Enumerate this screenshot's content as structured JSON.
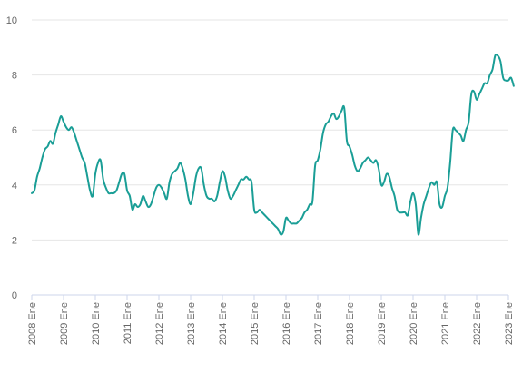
{
  "chart_data": {
    "type": "line",
    "title": "",
    "xlabel": "",
    "ylabel": "",
    "ylim": [
      0,
      10
    ],
    "yticks": [
      "0",
      "2",
      "4",
      "6",
      "8",
      "10"
    ],
    "xticks": [
      "2008 Ene",
      "2009 Ene",
      "2010 Ene",
      "2011 Ene",
      "2012 Ene",
      "2013 Ene",
      "2014 Ene",
      "2015 Ene",
      "2016 Ene",
      "2017 Ene",
      "2018 Ene",
      "2019 Ene",
      "2020 Ene",
      "2021 Ene",
      "2022 Ene",
      "2023 Ene"
    ],
    "grid": true,
    "legend": "none",
    "series": [
      {
        "color": "#1a9e96",
        "x_start": "2008-01",
        "x_end": "2023-03",
        "frequency": "monthly",
        "values": [
          3.7,
          3.8,
          4.3,
          4.6,
          5.0,
          5.3,
          5.4,
          5.6,
          5.5,
          5.9,
          6.2,
          6.5,
          6.3,
          6.1,
          6.0,
          6.1,
          5.9,
          5.6,
          5.3,
          5.0,
          4.8,
          4.3,
          3.8,
          3.6,
          4.4,
          4.8,
          4.9,
          4.2,
          3.9,
          3.7,
          3.7,
          3.7,
          3.8,
          4.1,
          4.4,
          4.4,
          3.8,
          3.6,
          3.1,
          3.3,
          3.2,
          3.3,
          3.6,
          3.4,
          3.2,
          3.3,
          3.6,
          3.9,
          4.0,
          3.9,
          3.7,
          3.5,
          4.1,
          4.4,
          4.5,
          4.6,
          4.8,
          4.6,
          4.2,
          3.6,
          3.3,
          3.7,
          4.3,
          4.6,
          4.6,
          4.0,
          3.6,
          3.5,
          3.5,
          3.4,
          3.6,
          4.1,
          4.5,
          4.3,
          3.8,
          3.5,
          3.6,
          3.8,
          4.0,
          4.2,
          4.2,
          4.3,
          4.2,
          4.1,
          3.1,
          3.0,
          3.1,
          3.0,
          2.9,
          2.8,
          2.7,
          2.6,
          2.5,
          2.4,
          2.2,
          2.3,
          2.8,
          2.7,
          2.6,
          2.6,
          2.6,
          2.7,
          2.8,
          3.0,
          3.1,
          3.3,
          3.4,
          4.7,
          4.9,
          5.3,
          5.9,
          6.2,
          6.3,
          6.5,
          6.6,
          6.4,
          6.5,
          6.7,
          6.8,
          5.6,
          5.4,
          5.1,
          4.7,
          4.5,
          4.6,
          4.8,
          4.9,
          5.0,
          4.9,
          4.8,
          4.9,
          4.6,
          4.0,
          4.1,
          4.4,
          4.3,
          3.9,
          3.6,
          3.1,
          3.0,
          3.0,
          3.0,
          2.9,
          3.4,
          3.7,
          3.3,
          2.2,
          2.8,
          3.3,
          3.6,
          3.9,
          4.1,
          4.0,
          4.1,
          3.3,
          3.2,
          3.6,
          3.9,
          4.8,
          6.0,
          6.0,
          5.9,
          5.8,
          5.6,
          6.0,
          6.3,
          7.3,
          7.4,
          7.1,
          7.3,
          7.5,
          7.7,
          7.7,
          8.0,
          8.2,
          8.7,
          8.7,
          8.5,
          7.9,
          7.8,
          7.8,
          7.9,
          7.6
        ]
      }
    ]
  }
}
